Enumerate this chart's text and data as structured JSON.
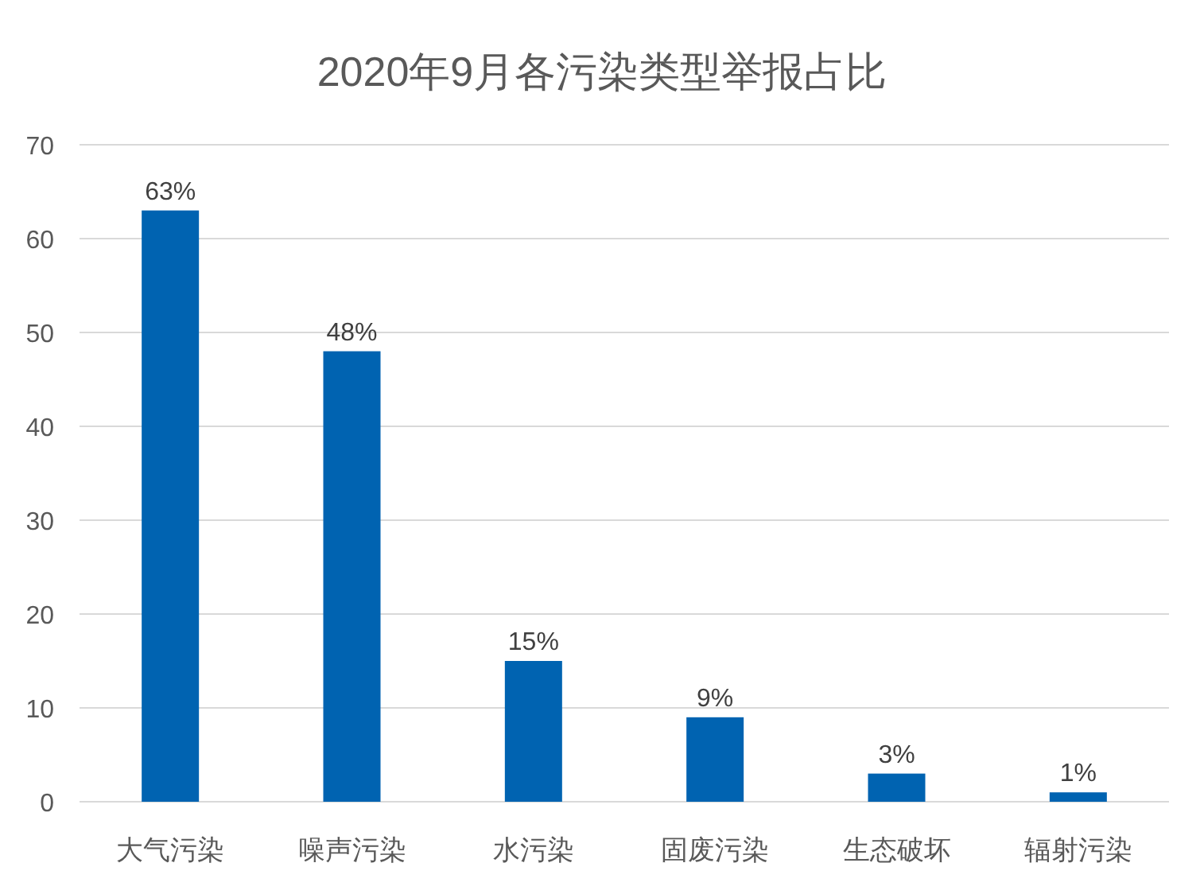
{
  "chart_data": {
    "type": "bar",
    "title": "2020年9月各污染类型举报占比",
    "categories": [
      "大气污染",
      "噪声污染",
      "水污染",
      "固废污染",
      "生态破坏",
      "辐射污染"
    ],
    "values": [
      63,
      48,
      15,
      9,
      3,
      1
    ],
    "value_labels": [
      "63%",
      "48%",
      "15%",
      "9%",
      "3%",
      "1%"
    ],
    "color": "#0063b1",
    "ylim": [
      0,
      70
    ],
    "yticks": [
      0,
      10,
      20,
      30,
      40,
      50,
      60,
      70
    ],
    "grid": "y"
  }
}
